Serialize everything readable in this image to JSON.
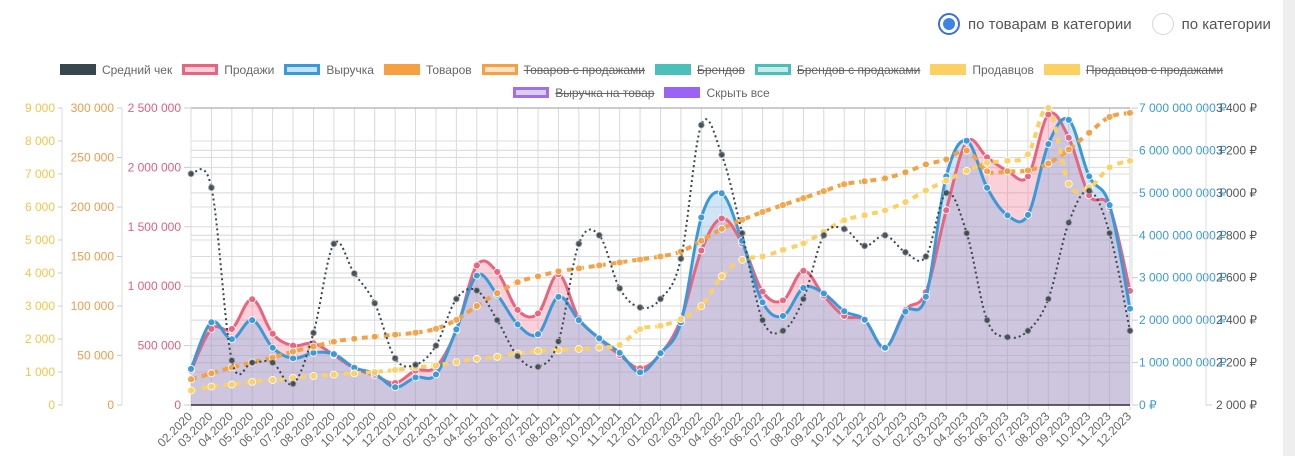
{
  "mode_selector": {
    "options": [
      {
        "label": "по товарам в категории",
        "checked": true
      },
      {
        "label": "по категории",
        "checked": false
      }
    ]
  },
  "legend": {
    "row1": [
      {
        "label": "Средний чек",
        "color": "#37474f",
        "fill": "#37474f",
        "style": "dotted",
        "hidden": false
      },
      {
        "label": "Продажи",
        "color": "#e8647f",
        "fill": "#fbd0da",
        "style": "solid",
        "hidden": false
      },
      {
        "label": "Выручка",
        "color": "#3a9ad9",
        "fill": "#c5e3f6",
        "style": "solid",
        "hidden": false
      },
      {
        "label": "Товаров",
        "color": "#f4a043",
        "fill": "#f4a043",
        "style": "dotted",
        "hidden": false
      },
      {
        "label": "Товаров с продажами",
        "color": "#f4a043",
        "fill": "#fde3c8",
        "style": "solid",
        "hidden": true
      },
      {
        "label": "Брендов",
        "color": "#4bbfba",
        "fill": "#4bbfba",
        "style": "dotted",
        "hidden": true
      },
      {
        "label": "Брендов с продажами",
        "color": "#4bbfba",
        "fill": "#c9ecea",
        "style": "solid",
        "hidden": true
      },
      {
        "label": "Продавцов",
        "color": "#fdd063",
        "fill": "#fdd063",
        "style": "dotted",
        "hidden": false
      },
      {
        "label": "Продавцов с продажами",
        "color": "#fdd063",
        "fill": "#fdd063",
        "style": "solid",
        "hidden": true
      }
    ],
    "row2": [
      {
        "label": "Выручка на товар",
        "color": "#a071e6",
        "fill": "#dcccf8",
        "style": "solid",
        "hidden": true
      },
      {
        "label": "Скрыть все",
        "color": "#9b63f5",
        "fill": "#9b63f5",
        "style": "solid",
        "hidden": false
      }
    ]
  },
  "chart_data": {
    "type": "line",
    "categories": [
      "02.2020",
      "03.2020",
      "04.2020",
      "05.2020",
      "06.2020",
      "07.2020",
      "08.2020",
      "09.2020",
      "10.2020",
      "11.2020",
      "12.2020",
      "01.2021",
      "02.2021",
      "03.2021",
      "04.2021",
      "05.2021",
      "06.2021",
      "07.2021",
      "08.2021",
      "09.2021",
      "10.2021",
      "11.2021",
      "12.2021",
      "01.2022",
      "02.2022",
      "03.2022",
      "04.2022",
      "05.2022",
      "06.2022",
      "07.2022",
      "08.2022",
      "09.2022",
      "10.2022",
      "11.2022",
      "12.2022",
      "01.2023",
      "02.2023",
      "03.2023",
      "04.2023",
      "05.2023",
      "06.2023",
      "07.2023",
      "08.2023",
      "09.2023",
      "10.2023",
      "11.2023",
      "12.2023"
    ],
    "axes": [
      {
        "id": "sellers",
        "position": "left",
        "color": "#f5c54a",
        "min": 0,
        "max": 9000,
        "ticks": [
          "0",
          "1 000",
          "2 000",
          "3 000",
          "4 000",
          "5 000",
          "6 000",
          "7 000",
          "8 000",
          "9 000"
        ]
      },
      {
        "id": "products",
        "position": "left",
        "color": "#ee9c4c",
        "min": 0,
        "max": 300000,
        "ticks": [
          "0",
          "50 000",
          "100 000",
          "150 000",
          "200 000",
          "250 000",
          "300 000"
        ]
      },
      {
        "id": "sales",
        "position": "left",
        "color": "#e0607e",
        "min": 0,
        "max": 2500000,
        "ticks": [
          "0",
          "500 000",
          "1 000 000",
          "1 500 000",
          "2 000 000",
          "2 500 000"
        ]
      },
      {
        "id": "revenue",
        "position": "right",
        "color": "#3a9ad9",
        "min": 0,
        "max": 7000000000,
        "ticks": [
          "0 ₽",
          "1 000 000 000 ₽",
          "2 000 000 000 ₽",
          "3 000 000 000 ₽",
          "4 000 000 000 ₽",
          "5 000 000 000 ₽",
          "6 000 000 000 ₽",
          "7 000 000 000 ₽"
        ]
      },
      {
        "id": "avgcheck",
        "position": "right",
        "color": "#555555",
        "min": 2000,
        "max": 3400,
        "ticks": [
          "2 000 ₽",
          "2 200 ₽",
          "2 400 ₽",
          "2 600 ₽",
          "2 800 ₽",
          "3 000 ₽",
          "3 200 ₽",
          "3 400 ₽"
        ]
      }
    ],
    "series": [
      {
        "name": "Продажи",
        "axis": "sales",
        "color": "#e8647f",
        "fill": "rgba(240,120,150,0.35)",
        "style": "solid",
        "values": [
          290000,
          640000,
          640000,
          890000,
          600000,
          500000,
          520000,
          420000,
          310000,
          250000,
          185000,
          290000,
          320000,
          630000,
          1175000,
          1120000,
          800000,
          770000,
          1100000,
          730000,
          560000,
          420000,
          310000,
          430000,
          720000,
          1300000,
          1570000,
          1360000,
          955000,
          880000,
          1130000,
          920000,
          750000,
          715000,
          480000,
          800000,
          950000,
          1640000,
          2215000,
          2085000,
          1970000,
          1925000,
          2445000,
          2250000,
          1765000,
          1665000,
          960000
        ]
      },
      {
        "name": "Выручка",
        "axis": "revenue",
        "color": "#3a9ad9",
        "fill": "rgba(120,180,230,0.35)",
        "style": "solid",
        "values": [
          850000000,
          1950000000,
          1550000000,
          2000000000,
          1350000000,
          1100000000,
          1230000000,
          1200000000,
          880000000,
          740000000,
          420000000,
          650000000,
          720000000,
          1780000000,
          3050000000,
          2600000000,
          1900000000,
          1670000000,
          2550000000,
          2000000000,
          1570000000,
          1230000000,
          770000000,
          1220000000,
          1950000000,
          4420000000,
          4990000000,
          3870000000,
          2420000000,
          2100000000,
          2760000000,
          2630000000,
          2210000000,
          2010000000,
          1350000000,
          2200000000,
          2550000000,
          5390000000,
          6230000000,
          5120000000,
          4470000000,
          4480000000,
          6150000000,
          6720000000,
          5390000000,
          4710000000,
          2270000000
        ]
      },
      {
        "name": "Средний чек",
        "axis": "avgcheck",
        "color": "#37474f",
        "style": "dotted",
        "values": [
          3090,
          3025,
          2210,
          2200,
          2200,
          2100,
          2340,
          2760,
          2620,
          2480,
          2220,
          2190,
          2280,
          2500,
          2540,
          2400,
          2230,
          2180,
          2300,
          2760,
          2800,
          2550,
          2460,
          2500,
          2690,
          3320,
          3180,
          2810,
          2400,
          2350,
          2500,
          2800,
          2830,
          2750,
          2800,
          2720,
          2700,
          3000,
          2810,
          2400,
          2320,
          2350,
          2500,
          2860,
          3010,
          2810,
          2350
        ]
      },
      {
        "name": "Товаров",
        "axis": "products",
        "color": "#f4a043",
        "style": "dotted",
        "values": [
          26000,
          32000,
          38000,
          43000,
          48000,
          54000,
          59000,
          64000,
          67000,
          69000,
          71000,
          73000,
          77000,
          86000,
          100000,
          113000,
          124000,
          130000,
          135000,
          138000,
          141000,
          144000,
          147000,
          150000,
          155000,
          166000,
          178000,
          187000,
          195000,
          202000,
          209000,
          216000,
          223000,
          226000,
          229000,
          235000,
          243000,
          248000,
          257000,
          236000,
          236000,
          237000,
          244000,
          258000,
          275000,
          291000,
          295000
        ]
      },
      {
        "name": "Продавцов",
        "axis": "sellers",
        "color": "#fdd063",
        "style": "dotted",
        "values": [
          440,
          560,
          620,
          700,
          760,
          820,
          880,
          920,
          960,
          1000,
          1060,
          1140,
          1200,
          1300,
          1400,
          1460,
          1560,
          1640,
          1660,
          1700,
          1740,
          1820,
          2300,
          2400,
          2600,
          3000,
          3900,
          4400,
          4500,
          4700,
          4900,
          5250,
          5600,
          5750,
          5900,
          6150,
          6500,
          6800,
          7100,
          7340,
          7400,
          7600,
          9000,
          6700,
          6600,
          7200,
          7400
        ]
      }
    ],
    "xlabel": "",
    "ylabel": "",
    "grid": true,
    "legend_position": "top"
  }
}
